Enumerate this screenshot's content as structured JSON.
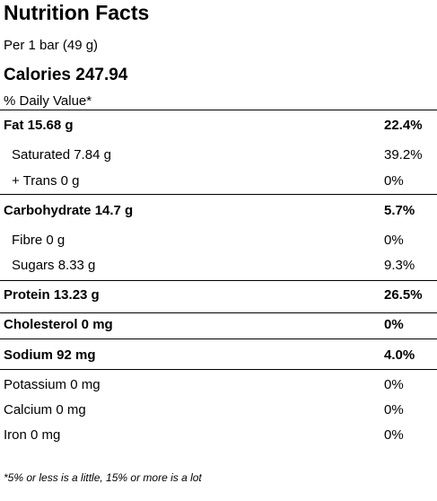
{
  "label": {
    "title": "Nutrition Facts",
    "serving": "Per 1 bar (49 g)",
    "calories": "Calories 247.94",
    "daily_value_header": "% Daily Value*",
    "footnote": "*5% or less is a little, 15% or more is a lot"
  },
  "nutrients": {
    "fat": {
      "name": "Fat 15.68 g",
      "dv": "22.4%"
    },
    "saturated": {
      "name": "Saturated 7.84 g",
      "dv": "39.2%"
    },
    "trans": {
      "name": "+ Trans 0 g",
      "dv": "0%"
    },
    "carbohydrate": {
      "name": "Carbohydrate 14.7 g",
      "dv": "5.7%"
    },
    "fibre": {
      "name": "Fibre 0 g",
      "dv": "0%"
    },
    "sugars": {
      "name": "Sugars 8.33 g",
      "dv": "9.3%"
    },
    "protein": {
      "name": "Protein 13.23 g",
      "dv": "26.5%"
    },
    "cholesterol": {
      "name": "Cholesterol 0 mg",
      "dv": "0%"
    },
    "sodium": {
      "name": "Sodium 92 mg",
      "dv": "4.0%"
    },
    "potassium": {
      "name": "Potassium 0 mg",
      "dv": "0%"
    },
    "calcium": {
      "name": "Calcium 0 mg",
      "dv": "0%"
    },
    "iron": {
      "name": "Iron 0 mg",
      "dv": "0%"
    }
  }
}
